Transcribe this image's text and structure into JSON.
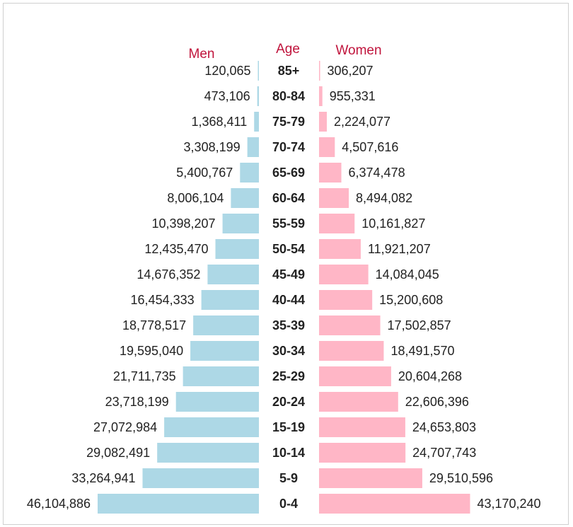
{
  "chart_data": {
    "type": "bar",
    "orientation": "horizontal",
    "layout": "population-pyramid",
    "headers": {
      "left": "Men",
      "center": "Age",
      "right": "Women"
    },
    "categories": [
      "85+",
      "80-84",
      "75-79",
      "70-74",
      "65-69",
      "60-64",
      "55-59",
      "50-54",
      "45-49",
      "40-44",
      "35-39",
      "30-34",
      "25-29",
      "20-24",
      "15-19",
      "10-14",
      "5-9",
      "0-4"
    ],
    "series": [
      {
        "name": "Men",
        "color": "#add8e6",
        "values": [
          120065,
          473106,
          1368411,
          3308199,
          5400767,
          8006104,
          10398207,
          12435470,
          14676352,
          16454333,
          18778517,
          19595040,
          21711735,
          23718199,
          27072984,
          29082491,
          33264941,
          46104886
        ],
        "labels": [
          "120,065",
          "473,106",
          "1,368,411",
          "3,308,199",
          "5,400,767",
          "8,006,104",
          "10,398,207",
          "12,435,470",
          "14,676,352",
          "16,454,333",
          "18,778,517",
          "19,595,040",
          "21,711,735",
          "23,718,199",
          "27,072,984",
          "29,082,491",
          "33,264,941",
          "46,104,886"
        ]
      },
      {
        "name": "Women",
        "color": "#ffb6c6",
        "values": [
          306207,
          955331,
          2224077,
          4507616,
          6374478,
          8494082,
          10161827,
          11921207,
          14084045,
          15200608,
          17502857,
          18491570,
          20604268,
          22606396,
          24653803,
          24707743,
          29510596,
          43170240
        ],
        "labels": [
          "306,207",
          "955,331",
          "2,224,077",
          "4,507,616",
          "6,374,478",
          "8,494,082",
          "10,161,827",
          "11,921,207",
          "14,084,045",
          "15,200,608",
          "17,502,857",
          "18,491,570",
          "20,604,268",
          "22,606,396",
          "24,653,803",
          "24,707,743",
          "29,510,596",
          "43,170,240"
        ]
      }
    ],
    "grid": false,
    "legend": "none"
  },
  "colors": {
    "header_text": "#c0143c",
    "men_bar": "#add8e6",
    "women_bar": "#ffb6c6",
    "frame_border": "#cfcfcf"
  }
}
